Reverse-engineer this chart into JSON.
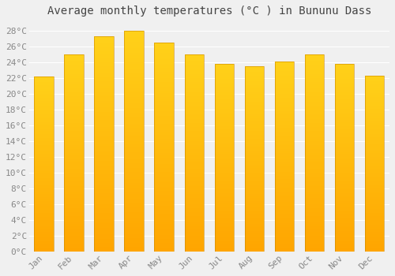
{
  "title": "Average monthly temperatures (°C ) in Bununu Dass",
  "months": [
    "Jan",
    "Feb",
    "Mar",
    "Apr",
    "May",
    "Jun",
    "Jul",
    "Aug",
    "Sep",
    "Oct",
    "Nov",
    "Dec"
  ],
  "values": [
    22.2,
    25.0,
    27.3,
    28.0,
    26.5,
    25.0,
    23.8,
    23.5,
    24.1,
    25.0,
    23.8,
    22.3
  ],
  "bar_color_main": "#FFA500",
  "bar_color_light": "#FFD700",
  "ylim": [
    0,
    29
  ],
  "yticks": [
    0,
    2,
    4,
    6,
    8,
    10,
    12,
    14,
    16,
    18,
    20,
    22,
    24,
    26,
    28
  ],
  "ytick_labels": [
    "0°C",
    "2°C",
    "4°C",
    "6°C",
    "8°C",
    "10°C",
    "12°C",
    "14°C",
    "16°C",
    "18°C",
    "20°C",
    "22°C",
    "24°C",
    "26°C",
    "28°C"
  ],
  "background_color": "#f0f0f0",
  "plot_bg_color": "#f0f0f0",
  "grid_color": "#ffffff",
  "title_fontsize": 10,
  "tick_fontsize": 8,
  "tick_color": "#888888",
  "font_family": "monospace",
  "bar_width": 0.65
}
